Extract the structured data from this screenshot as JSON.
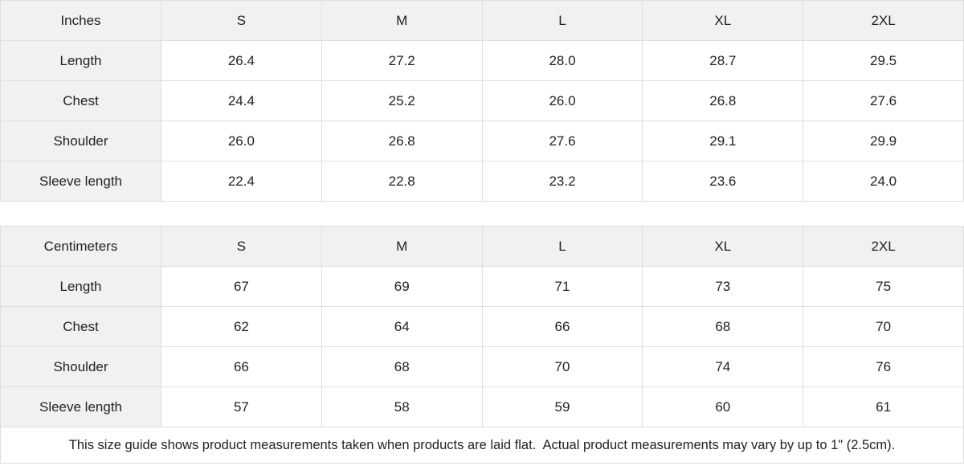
{
  "size_guide": {
    "tables": [
      {
        "id": "inches",
        "unit_label": "Inches",
        "size_headers": [
          "S",
          "M",
          "L",
          "XL",
          "2XL"
        ],
        "rows": [
          {
            "label": "Length",
            "values": [
              "26.4",
              "27.2",
              "28.0",
              "28.7",
              "29.5"
            ]
          },
          {
            "label": "Chest",
            "values": [
              "24.4",
              "25.2",
              "26.0",
              "26.8",
              "27.6"
            ]
          },
          {
            "label": "Shoulder",
            "values": [
              "26.0",
              "26.8",
              "27.6",
              "29.1",
              "29.9"
            ]
          },
          {
            "label": "Sleeve length",
            "values": [
              "22.4",
              "22.8",
              "23.2",
              "23.6",
              "24.0"
            ]
          }
        ]
      },
      {
        "id": "centimeters",
        "unit_label": "Centimeters",
        "size_headers": [
          "S",
          "M",
          "L",
          "XL",
          "2XL"
        ],
        "rows": [
          {
            "label": "Length",
            "values": [
              "67",
              "69",
              "71",
              "73",
              "75"
            ]
          },
          {
            "label": "Chest",
            "values": [
              "62",
              "64",
              "66",
              "68",
              "70"
            ]
          },
          {
            "label": "Shoulder",
            "values": [
              "66",
              "68",
              "70",
              "74",
              "76"
            ]
          },
          {
            "label": "Sleeve length",
            "values": [
              "57",
              "58",
              "59",
              "60",
              "61"
            ]
          }
        ]
      }
    ],
    "footer_note": "This size guide shows product measurements taken when products are laid flat.  Actual product measurements may vary by up to 1\" (2.5cm)."
  },
  "colors": {
    "header_bg": "#f1f1f1",
    "border": "#dedede",
    "text": "#222222",
    "cell_bg": "#ffffff"
  }
}
